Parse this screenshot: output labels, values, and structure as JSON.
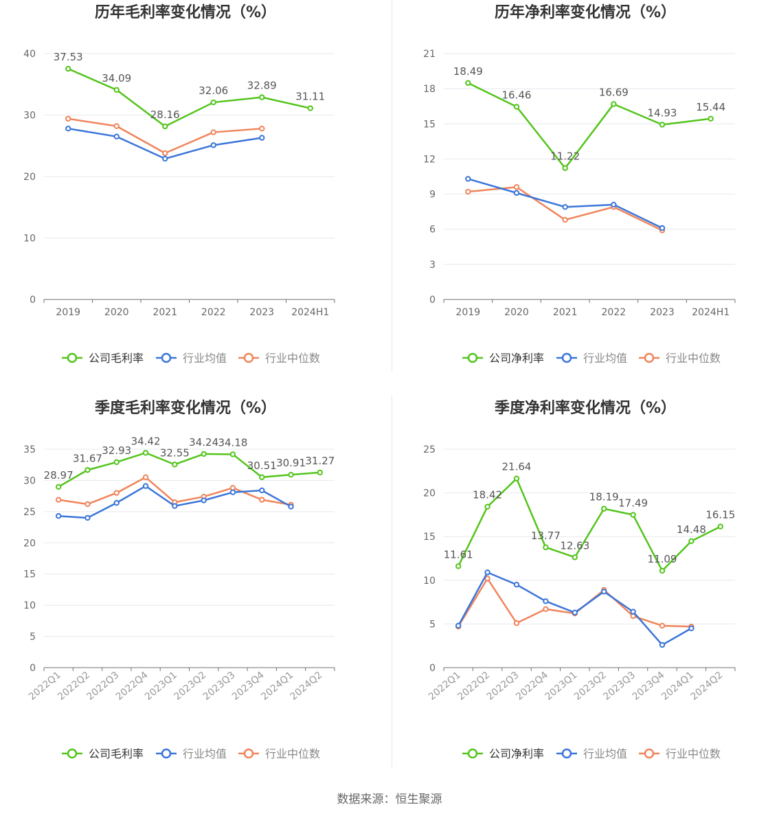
{
  "footer": {
    "source": "数据来源：恒生聚源"
  },
  "colors": {
    "company": "#52c41a",
    "avg": "#3a75d9",
    "median": "#f0845a",
    "grid": "#e6e8ef",
    "axis": "#666666",
    "label": "#555555"
  },
  "chart_data": [
    {
      "type": "line",
      "title": "历年毛利率变化情况（%）",
      "categories": [
        "2019",
        "2020",
        "2021",
        "2022",
        "2023",
        "2024H1"
      ],
      "ylim": [
        0,
        40
      ],
      "yticks": [
        0,
        10,
        20,
        30,
        40
      ],
      "grid": true,
      "legend_position": "bottom",
      "series": [
        {
          "name": "公司毛利率",
          "values": [
            37.53,
            34.09,
            28.16,
            32.06,
            32.89,
            31.11
          ],
          "labels": [
            "37.53",
            "34.09",
            "28.16",
            "32.06",
            "32.89",
            "31.11"
          ]
        },
        {
          "name": "行业均值",
          "values": [
            27.8,
            26.5,
            22.9,
            25.1,
            26.3,
            null
          ]
        },
        {
          "name": "行业中位数",
          "values": [
            29.4,
            28.2,
            23.8,
            27.2,
            27.8,
            null
          ]
        }
      ]
    },
    {
      "type": "line",
      "title": "历年净利率变化情况（%）",
      "categories": [
        "2019",
        "2020",
        "2021",
        "2022",
        "2023",
        "2024H1"
      ],
      "ylim": [
        0,
        21
      ],
      "yticks": [
        0,
        3,
        6,
        9,
        12,
        15,
        18,
        21
      ],
      "grid": true,
      "legend_position": "bottom",
      "series": [
        {
          "name": "公司净利率",
          "values": [
            18.49,
            16.46,
            11.22,
            16.69,
            14.93,
            15.44
          ],
          "labels": [
            "18.49",
            "16.46",
            "11.22",
            "16.69",
            "14.93",
            "15.44"
          ]
        },
        {
          "name": "行业均值",
          "values": [
            10.3,
            9.1,
            7.9,
            8.1,
            6.1,
            null
          ]
        },
        {
          "name": "行业中位数",
          "values": [
            9.2,
            9.6,
            6.8,
            7.9,
            5.9,
            null
          ]
        }
      ]
    },
    {
      "type": "line",
      "title": "季度毛利率变化情况（%）",
      "categories": [
        "2022Q1",
        "2022Q2",
        "2022Q3",
        "2022Q4",
        "2023Q1",
        "2023Q2",
        "2023Q3",
        "2023Q4",
        "2024Q1",
        "2024Q2"
      ],
      "ylim": [
        0,
        35
      ],
      "yticks": [
        0,
        5,
        10,
        15,
        20,
        25,
        30,
        35
      ],
      "grid": true,
      "legend_position": "bottom",
      "series": [
        {
          "name": "公司毛利率",
          "values": [
            28.97,
            31.67,
            32.93,
            34.42,
            32.55,
            34.24,
            34.18,
            30.51,
            30.91,
            31.27
          ],
          "labels": [
            "28.97",
            "31.67",
            "32.93",
            "34.42",
            "32.55",
            "34.24",
            "34.18",
            "30.51",
            "30.91",
            "31.27"
          ]
        },
        {
          "name": "行业均值",
          "values": [
            24.3,
            24.0,
            26.4,
            29.1,
            25.9,
            26.8,
            28.1,
            28.4,
            25.8,
            null
          ]
        },
        {
          "name": "行业中位数",
          "values": [
            26.9,
            26.2,
            28.0,
            30.5,
            26.5,
            27.4,
            28.8,
            26.9,
            26.1,
            null
          ]
        }
      ]
    },
    {
      "type": "line",
      "title": "季度净利率变化情况（%）",
      "categories": [
        "2022Q1",
        "2022Q2",
        "2022Q3",
        "2022Q4",
        "2023Q1",
        "2023Q2",
        "2023Q3",
        "2023Q4",
        "2024Q1",
        "2024Q2"
      ],
      "ylim": [
        0,
        25
      ],
      "yticks": [
        0,
        5,
        10,
        15,
        20,
        25
      ],
      "grid": true,
      "legend_position": "bottom",
      "series": [
        {
          "name": "公司净利率",
          "values": [
            11.61,
            18.42,
            21.64,
            13.77,
            12.63,
            18.19,
            17.49,
            11.09,
            14.48,
            16.15
          ],
          "labels": [
            "11.61",
            "18.42",
            "21.64",
            "13.77",
            "12.63",
            "18.19",
            "17.49",
            "11.09",
            "14.48",
            "16.15"
          ]
        },
        {
          "name": "行业均值",
          "values": [
            4.8,
            10.9,
            9.5,
            7.6,
            6.3,
            8.7,
            6.4,
            2.6,
            4.5,
            null
          ]
        },
        {
          "name": "行业中位数",
          "values": [
            4.7,
            10.2,
            5.1,
            6.7,
            6.2,
            8.9,
            5.9,
            4.8,
            4.7,
            null
          ]
        }
      ]
    }
  ]
}
